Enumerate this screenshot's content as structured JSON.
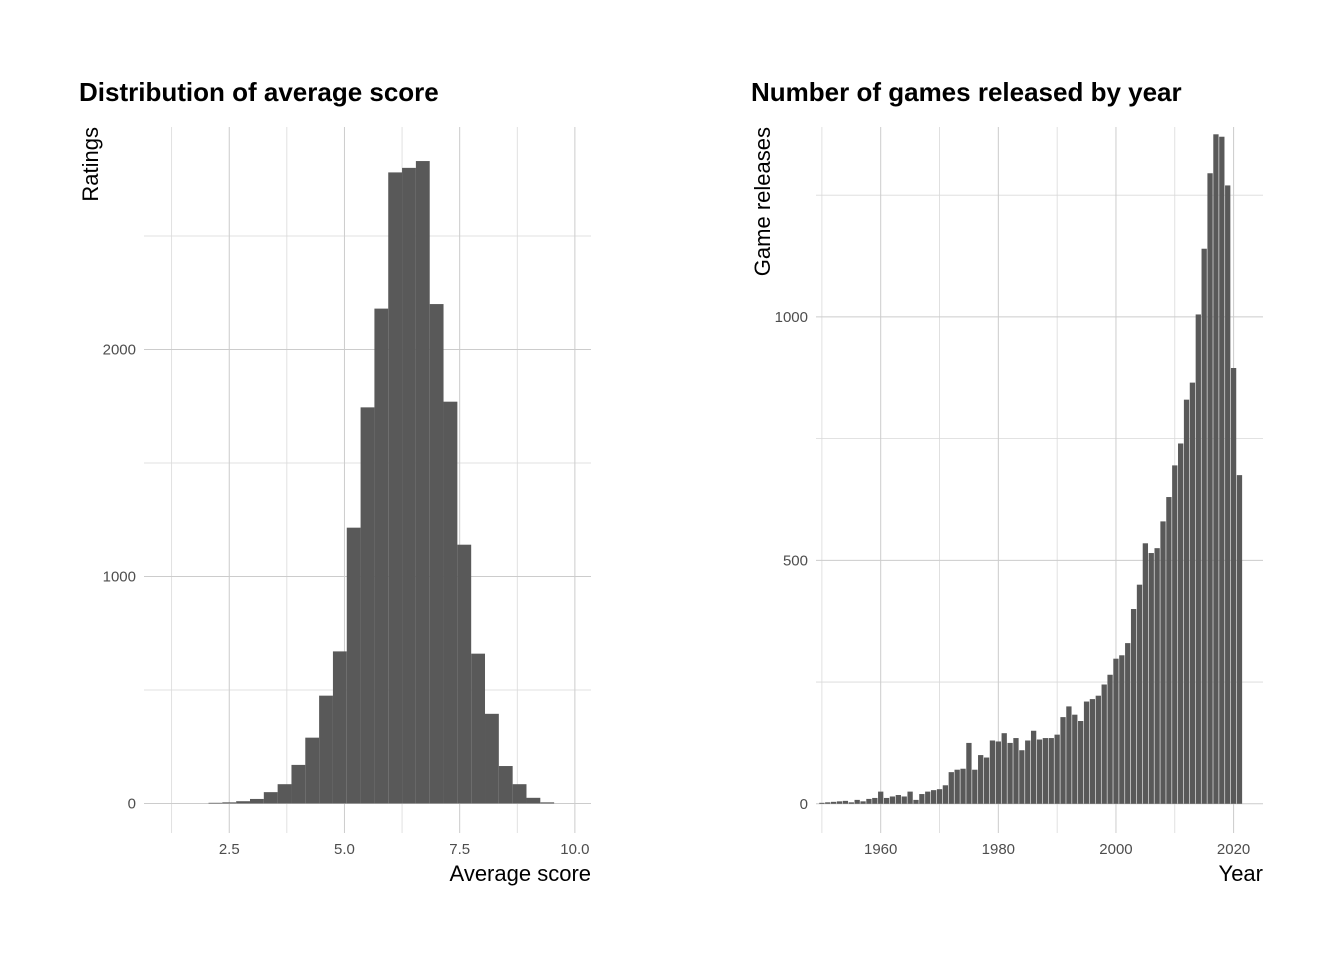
{
  "chart_data": [
    {
      "type": "bar",
      "subtype": "histogram",
      "title": "Distribution of average score",
      "xlabel": "Average score",
      "ylabel": "Ratings",
      "xlim": [
        0.65,
        10.35
      ],
      "ylim": [
        -130,
        2980
      ],
      "x_ticks": [
        "2.5",
        "5.0",
        "7.5",
        "10.0"
      ],
      "y_ticks": [
        "0",
        "1000",
        "2000"
      ],
      "grid": true,
      "bin_width": 0.3,
      "bins": [
        {
          "x": 2.2,
          "y": 3
        },
        {
          "x": 2.5,
          "y": 5
        },
        {
          "x": 2.8,
          "y": 10
        },
        {
          "x": 3.1,
          "y": 20
        },
        {
          "x": 3.4,
          "y": 50
        },
        {
          "x": 3.7,
          "y": 85
        },
        {
          "x": 4.0,
          "y": 170
        },
        {
          "x": 4.3,
          "y": 290
        },
        {
          "x": 4.6,
          "y": 475
        },
        {
          "x": 4.9,
          "y": 670
        },
        {
          "x": 5.2,
          "y": 1215
        },
        {
          "x": 5.5,
          "y": 1745
        },
        {
          "x": 5.8,
          "y": 2180
        },
        {
          "x": 6.1,
          "y": 2780
        },
        {
          "x": 6.4,
          "y": 2800
        },
        {
          "x": 6.7,
          "y": 2830
        },
        {
          "x": 7.0,
          "y": 2200
        },
        {
          "x": 7.3,
          "y": 1770
        },
        {
          "x": 7.6,
          "y": 1140
        },
        {
          "x": 7.9,
          "y": 660
        },
        {
          "x": 8.2,
          "y": 395
        },
        {
          "x": 8.5,
          "y": 165
        },
        {
          "x": 8.8,
          "y": 85
        },
        {
          "x": 9.1,
          "y": 25
        },
        {
          "x": 9.4,
          "y": 5
        }
      ]
    },
    {
      "type": "bar",
      "title": "Number of games released by year",
      "xlabel": "Year",
      "ylabel": "Game releases",
      "xlim": [
        1949,
        2025
      ],
      "ylim": [
        -60,
        1390
      ],
      "x_ticks": [
        "1960",
        "1980",
        "2000",
        "2020"
      ],
      "y_ticks": [
        "0",
        "500",
        "1000"
      ],
      "grid": true,
      "years": [
        1950,
        1951,
        1952,
        1953,
        1954,
        1955,
        1956,
        1957,
        1958,
        1959,
        1960,
        1961,
        1962,
        1963,
        1964,
        1965,
        1966,
        1967,
        1968,
        1969,
        1970,
        1971,
        1972,
        1973,
        1974,
        1975,
        1976,
        1977,
        1978,
        1979,
        1980,
        1981,
        1982,
        1983,
        1984,
        1985,
        1986,
        1987,
        1988,
        1989,
        1990,
        1991,
        1992,
        1993,
        1994,
        1995,
        1996,
        1997,
        1998,
        1999,
        2000,
        2001,
        2002,
        2003,
        2004,
        2005,
        2006,
        2007,
        2008,
        2009,
        2010,
        2011,
        2012,
        2013,
        2014,
        2015,
        2016,
        2017,
        2018,
        2019,
        2020,
        2021
      ],
      "values": [
        2,
        3,
        4,
        5,
        6,
        3,
        8,
        5,
        10,
        12,
        25,
        12,
        15,
        18,
        15,
        25,
        8,
        20,
        25,
        28,
        30,
        38,
        65,
        70,
        72,
        125,
        70,
        100,
        95,
        130,
        128,
        145,
        125,
        135,
        110,
        130,
        150,
        132,
        135,
        135,
        142,
        178,
        200,
        183,
        170,
        210,
        215,
        222,
        245,
        265,
        298,
        305,
        330,
        400,
        450,
        535,
        515,
        525,
        580,
        630,
        695,
        740,
        830,
        865,
        1005,
        1140,
        1295,
        1375,
        1370,
        1270,
        895,
        675
      ]
    }
  ]
}
